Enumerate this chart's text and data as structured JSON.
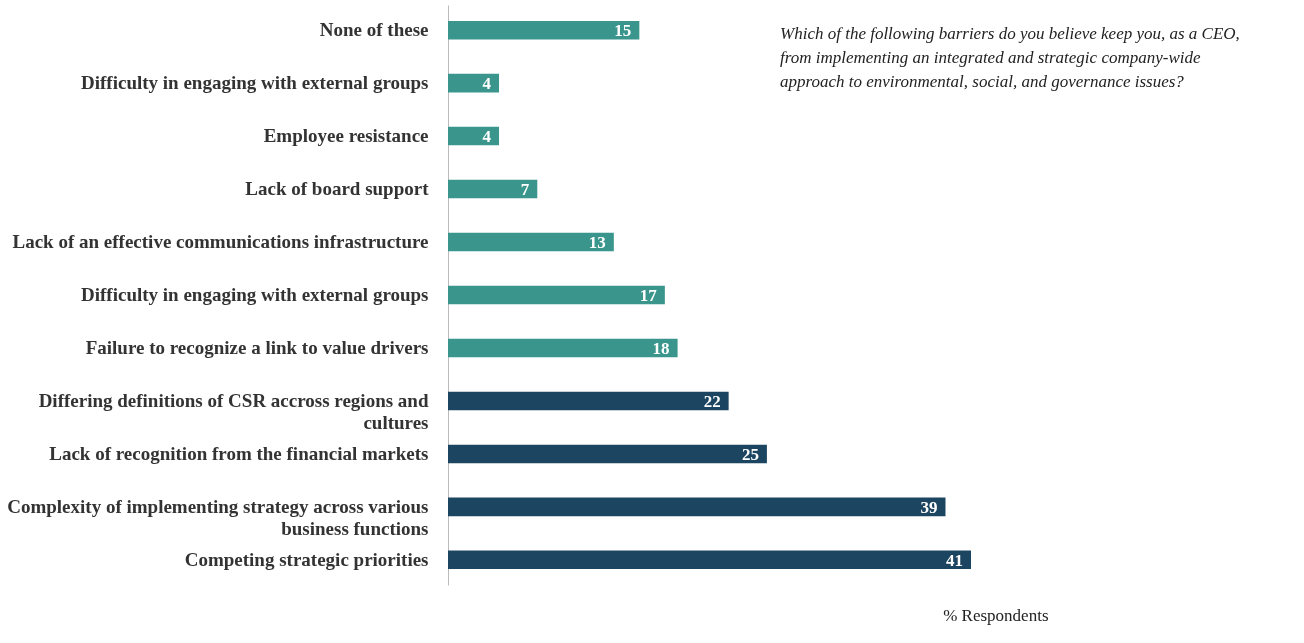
{
  "chart_data": {
    "type": "bar",
    "orientation": "horizontal",
    "data_labels": true,
    "legend": false,
    "grid": false,
    "xlabel": "% Respondents",
    "annotations": [
      "Which of the following barriers do you believe keep you, as a CEO, from implementing an integrated and strategic company-wide approach to environmental, social, and governance issues?"
    ],
    "categories": [
      "None of these",
      "Difficulty in engaging with external groups",
      "Employee resistance",
      "Lack of board support",
      "Lack of an effective communications infrastructure",
      "Difficulty in engaging with external groups",
      "Failure to recognize a link to value drivers",
      "Differing definitions of CSR accross regions and cultures",
      "Lack of recognition from the financial markets",
      "Complexity of implementing strategy across various business functions",
      "Competing strategic priorities"
    ],
    "values": [
      15,
      4,
      4,
      7,
      13,
      17,
      18,
      22,
      25,
      39,
      41
    ],
    "colors": [
      "#3a968d",
      "#3a968d",
      "#3a968d",
      "#3a968d",
      "#3a968d",
      "#3a968d",
      "#3a968d",
      "#1c4562",
      "#1c4562",
      "#1c4562",
      "#1c4562"
    ]
  }
}
